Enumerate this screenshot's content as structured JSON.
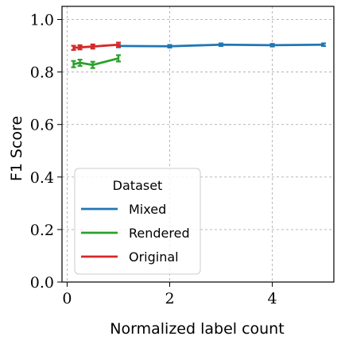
{
  "chart_data": {
    "type": "line",
    "title": "",
    "xlabel": "Normalized label count",
    "ylabel": "F1 Score",
    "xlim": [
      -0.1,
      5.2
    ],
    "ylim": [
      0.0,
      1.05
    ],
    "xticks": [
      0,
      2,
      4
    ],
    "xtick_labels": [
      "0",
      "2",
      "4"
    ],
    "yticks": [
      0.0,
      0.2,
      0.4,
      0.6,
      0.8,
      1.0
    ],
    "ytick_labels": [
      "0.0",
      "0.2",
      "0.4",
      "0.6",
      "0.8",
      "1.0"
    ],
    "grid": true,
    "legend": {
      "title": "Dataset",
      "placement": "lower-left"
    },
    "series": [
      {
        "name": "Mixed",
        "color": "#1f77b4",
        "points": [
          {
            "x": 1,
            "y": 0.899,
            "err": 0.005
          },
          {
            "x": 2,
            "y": 0.898,
            "err": 0.005
          },
          {
            "x": 3,
            "y": 0.904,
            "err": 0.005
          },
          {
            "x": 4,
            "y": 0.902,
            "err": 0.005
          },
          {
            "x": 5,
            "y": 0.904,
            "err": 0.005
          }
        ]
      },
      {
        "name": "Rendered",
        "color": "#2ca02c",
        "points": [
          {
            "x": 0.125,
            "y": 0.83,
            "err": 0.012
          },
          {
            "x": 0.25,
            "y": 0.835,
            "err": 0.012
          },
          {
            "x": 0.5,
            "y": 0.827,
            "err": 0.012
          },
          {
            "x": 1,
            "y": 0.852,
            "err": 0.012
          }
        ]
      },
      {
        "name": "Original",
        "color": "#d62728",
        "points": [
          {
            "x": 0.125,
            "y": 0.892,
            "err": 0.008
          },
          {
            "x": 0.25,
            "y": 0.894,
            "err": 0.008
          },
          {
            "x": 0.5,
            "y": 0.897,
            "err": 0.008
          },
          {
            "x": 1,
            "y": 0.904,
            "err": 0.008
          }
        ]
      }
    ]
  }
}
